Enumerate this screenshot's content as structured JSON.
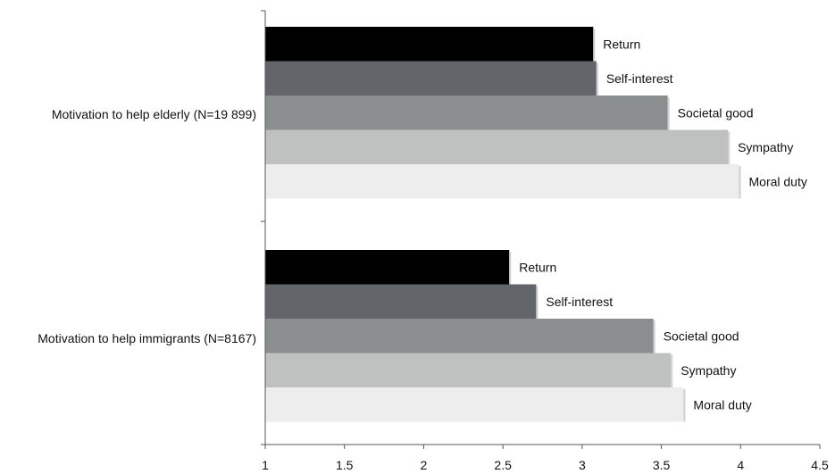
{
  "chart_data": {
    "type": "bar",
    "orientation": "horizontal",
    "categories": [
      "Motivation to help elderly (N=19 899)",
      "Motivation to help immigrants (N=8167)"
    ],
    "series": [
      {
        "name": "Return",
        "color": "#000000",
        "values": [
          3.07,
          2.54
        ]
      },
      {
        "name": "Self-interest",
        "color": "#62666a",
        "values": [
          3.09,
          2.71
        ]
      },
      {
        "name": "Societal good",
        "color": "#8b8e8e",
        "values": [
          3.54,
          3.45
        ]
      },
      {
        "name": "Sympathy",
        "color": "#bfc0c0",
        "values": [
          3.92,
          3.56
        ]
      },
      {
        "name": "Moral duty",
        "color": "#ededed",
        "values": [
          3.99,
          3.64
        ]
      }
    ],
    "xlim": [
      1,
      4.5
    ],
    "x_ticks": [
      "1",
      "1.5",
      "2",
      "2.5",
      "3",
      "3.5",
      "4",
      "4.5"
    ],
    "title": "",
    "xlabel": "",
    "ylabel": "",
    "grid": false,
    "legend": "none (series names labeled beside bars)"
  }
}
